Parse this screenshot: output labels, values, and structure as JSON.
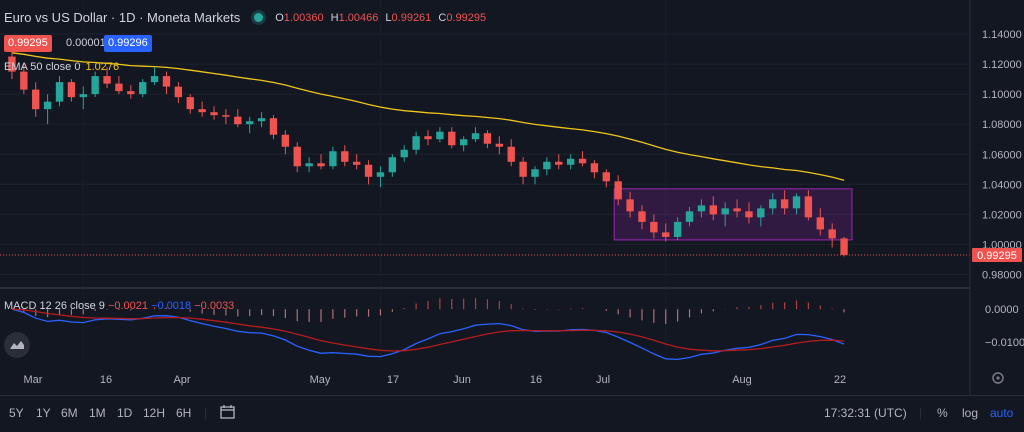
{
  "header": {
    "title": "Euro vs US Dollar · 1D · Moneta Markets",
    "o_label": "O",
    "o_value": "1.00360",
    "h_label": "H",
    "h_value": "1.00466",
    "l_label": "L",
    "l_value": "0.99261",
    "c_label": "C",
    "c_value": "0.99295"
  },
  "quote": {
    "sell": "0.99295",
    "spread": "0.00001",
    "buy": "0.99296"
  },
  "ema_legend": {
    "label": "EMA 50 close 0",
    "value": "1.0276"
  },
  "macd_legend": {
    "label": "MACD 12 26 close 9",
    "v1": "−0.0021",
    "v2": "−0.0018",
    "v3": "−0.0033"
  },
  "price_axis": {
    "ticks": [
      "1.14000",
      "1.12000",
      "1.10000",
      "1.08000",
      "1.06000",
      "1.04000",
      "1.02000",
      "1.00000",
      "0.98000"
    ],
    "last_price": "0.99295"
  },
  "macd_axis": {
    "ticks": [
      "0.0000",
      "−0.0100"
    ]
  },
  "time_axis": {
    "labels": [
      "Mar",
      "16",
      "Apr",
      "May",
      "17",
      "Jun",
      "16",
      "Jul",
      "Aug",
      "22"
    ]
  },
  "bottom_bar": {
    "timeframes": [
      "5Y",
      "1Y",
      "6M",
      "1M",
      "1D",
      "12H",
      "6H"
    ],
    "clock": "17:32:31 (UTC)",
    "percent": "%",
    "log": "log",
    "auto": "auto"
  },
  "colors": {
    "up": "#26a69a",
    "down": "#ef5350",
    "ema": "#f0c419",
    "macd": "#2962ff",
    "signal": "#b71c1c",
    "box": "#9c27b0"
  },
  "chart_data": {
    "type": "candlestick",
    "title": "Euro vs US Dollar · 1D · Moneta Markets",
    "ylim": [
      0.975,
      1.148
    ],
    "candles": [
      [
        1.125,
        1.13,
        1.11,
        1.115
      ],
      [
        1.115,
        1.12,
        1.1,
        1.103
      ],
      [
        1.103,
        1.108,
        1.085,
        1.09
      ],
      [
        1.09,
        1.1,
        1.08,
        1.095
      ],
      [
        1.095,
        1.112,
        1.092,
        1.108
      ],
      [
        1.108,
        1.11,
        1.095,
        1.098
      ],
      [
        1.098,
        1.105,
        1.09,
        1.1
      ],
      [
        1.1,
        1.115,
        1.098,
        1.112
      ],
      [
        1.112,
        1.118,
        1.104,
        1.107
      ],
      [
        1.107,
        1.112,
        1.1,
        1.102
      ],
      [
        1.102,
        1.106,
        1.097,
        1.1
      ],
      [
        1.1,
        1.11,
        1.098,
        1.108
      ],
      [
        1.108,
        1.118,
        1.106,
        1.112
      ],
      [
        1.112,
        1.115,
        1.1,
        1.105
      ],
      [
        1.105,
        1.108,
        1.094,
        1.098
      ],
      [
        1.098,
        1.1,
        1.087,
        1.09
      ],
      [
        1.09,
        1.095,
        1.085,
        1.088
      ],
      [
        1.088,
        1.092,
        1.083,
        1.086
      ],
      [
        1.086,
        1.09,
        1.08,
        1.085
      ],
      [
        1.085,
        1.09,
        1.078,
        1.08
      ],
      [
        1.08,
        1.085,
        1.074,
        1.082
      ],
      [
        1.082,
        1.088,
        1.078,
        1.084
      ],
      [
        1.084,
        1.086,
        1.07,
        1.073
      ],
      [
        1.073,
        1.076,
        1.06,
        1.065
      ],
      [
        1.065,
        1.068,
        1.048,
        1.052
      ],
      [
        1.052,
        1.058,
        1.048,
        1.054
      ],
      [
        1.054,
        1.06,
        1.05,
        1.052
      ],
      [
        1.052,
        1.065,
        1.05,
        1.062
      ],
      [
        1.062,
        1.066,
        1.052,
        1.055
      ],
      [
        1.055,
        1.06,
        1.05,
        1.053
      ],
      [
        1.053,
        1.056,
        1.04,
        1.045
      ],
      [
        1.045,
        1.052,
        1.038,
        1.048
      ],
      [
        1.048,
        1.06,
        1.045,
        1.058
      ],
      [
        1.058,
        1.066,
        1.055,
        1.063
      ],
      [
        1.063,
        1.075,
        1.06,
        1.072
      ],
      [
        1.072,
        1.076,
        1.066,
        1.07
      ],
      [
        1.07,
        1.078,
        1.068,
        1.075
      ],
      [
        1.075,
        1.078,
        1.064,
        1.066
      ],
      [
        1.066,
        1.072,
        1.062,
        1.07
      ],
      [
        1.07,
        1.078,
        1.068,
        1.074
      ],
      [
        1.074,
        1.076,
        1.064,
        1.067
      ],
      [
        1.067,
        1.072,
        1.06,
        1.065
      ],
      [
        1.065,
        1.07,
        1.052,
        1.055
      ],
      [
        1.055,
        1.058,
        1.04,
        1.045
      ],
      [
        1.045,
        1.052,
        1.04,
        1.05
      ],
      [
        1.05,
        1.058,
        1.046,
        1.055
      ],
      [
        1.055,
        1.06,
        1.05,
        1.053
      ],
      [
        1.053,
        1.06,
        1.05,
        1.057
      ],
      [
        1.057,
        1.062,
        1.052,
        1.054
      ],
      [
        1.054,
        1.056,
        1.044,
        1.048
      ],
      [
        1.048,
        1.05,
        1.038,
        1.042
      ],
      [
        1.042,
        1.046,
        1.026,
        1.03
      ],
      [
        1.03,
        1.035,
        1.018,
        1.022
      ],
      [
        1.022,
        1.026,
        1.01,
        1.015
      ],
      [
        1.015,
        1.02,
        1.004,
        1.008
      ],
      [
        1.008,
        1.014,
        1.002,
        1.005
      ],
      [
        1.005,
        1.018,
        1.003,
        1.015
      ],
      [
        1.015,
        1.025,
        1.012,
        1.022
      ],
      [
        1.022,
        1.03,
        1.018,
        1.026
      ],
      [
        1.026,
        1.032,
        1.016,
        1.02
      ],
      [
        1.02,
        1.028,
        1.012,
        1.024
      ],
      [
        1.024,
        1.03,
        1.018,
        1.022
      ],
      [
        1.022,
        1.028,
        1.014,
        1.018
      ],
      [
        1.018,
        1.026,
        1.012,
        1.024
      ],
      [
        1.024,
        1.034,
        1.02,
        1.03
      ],
      [
        1.03,
        1.036,
        1.02,
        1.024
      ],
      [
        1.024,
        1.034,
        1.02,
        1.032
      ],
      [
        1.032,
        1.036,
        1.016,
        1.018
      ],
      [
        1.018,
        1.024,
        1.006,
        1.01
      ],
      [
        1.01,
        1.014,
        0.998,
        1.004
      ],
      [
        1.004,
        1.005,
        0.992,
        0.993
      ]
    ],
    "ema50_start": 1.128,
    "ema50_end": 1.0276,
    "macd_ylim": [
      -0.016,
      0.004
    ],
    "macd_ticks": [
      0.0,
      -0.01
    ],
    "range_box": {
      "high": 1.037,
      "low": 1.003
    },
    "last_price": 0.99295
  }
}
